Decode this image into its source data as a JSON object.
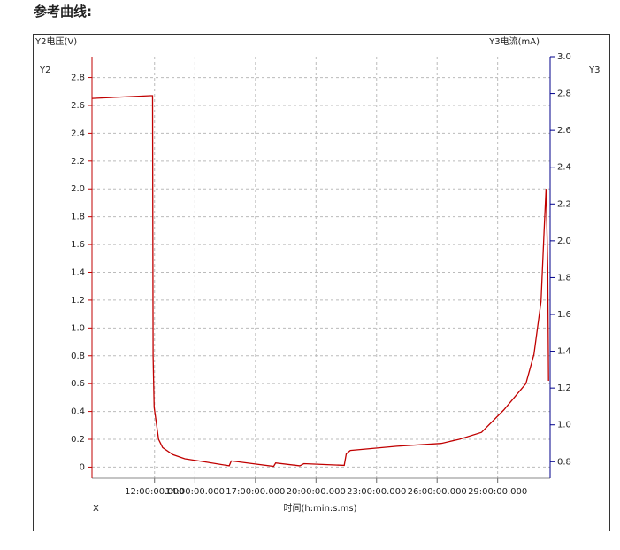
{
  "heading": "参考曲线:",
  "chart_data": {
    "type": "line",
    "y_title": "Y2电压(V)",
    "y2_title": "Y3电流(mA)",
    "y_axis_name": "Y2",
    "y2_axis_name": "Y3",
    "x_axis_name": "X",
    "x_label": "时间(h:min:s.ms)",
    "xlim": [
      8.9,
      31.6
    ],
    "xticks": [
      {
        "value": 12,
        "label": "12:00:00.000"
      },
      {
        "value": 14,
        "label": "14:00:00.000"
      },
      {
        "value": 17,
        "label": "17:00:00.000"
      },
      {
        "value": 20,
        "label": "20:00:00.000"
      },
      {
        "value": 23,
        "label": "23:00:00.000"
      },
      {
        "value": 26,
        "label": "26:00:00.000"
      },
      {
        "value": 29,
        "label": "29:00:00.000"
      }
    ],
    "ylim": [
      -0.08,
      2.95
    ],
    "yticks": [
      0,
      0.2,
      0.4,
      0.6,
      0.8,
      {
        "value": 1,
        "label": "1.0"
      },
      1.2,
      1.4,
      1.6,
      1.8,
      {
        "value": 2,
        "label": "2.0"
      },
      2.2,
      2.4,
      2.6,
      2.8
    ],
    "y2lim": [
      0.71,
      3.0
    ],
    "y2ticks": [
      0.8,
      {
        "value": 1,
        "label": "1.0"
      },
      1.2,
      1.4,
      1.6,
      1.8,
      {
        "value": 2,
        "label": "2.0"
      },
      2.2,
      2.4,
      2.6,
      2.8,
      {
        "value": 3,
        "label": "3.0"
      }
    ],
    "grid": true,
    "y_color": "#c00000",
    "y2_color": "#00008b",
    "x": [
      8.9,
      11.8,
      11.9,
      11.93,
      11.98,
      12.2,
      12.4,
      12.9,
      13.5,
      14.4,
      15.7,
      15.8,
      17.9,
      18.0,
      19.2,
      19.4,
      21.4,
      21.5,
      21.7,
      24.0,
      26.2,
      27.1,
      28.2,
      29.3,
      30.4,
      30.8,
      31.15,
      31.3,
      31.4,
      31.48,
      31.52
    ],
    "series": [
      {
        "color": "#c00000",
        "values": [
          2.65,
          2.67,
          2.67,
          0.8,
          0.43,
          0.2,
          0.14,
          0.09,
          0.06,
          0.04,
          0.01,
          0.045,
          0.006,
          0.03,
          0.01,
          0.025,
          0.013,
          0.095,
          0.12,
          0.15,
          0.17,
          0.2,
          0.25,
          0.41,
          0.6,
          0.81,
          1.19,
          1.7,
          2.0,
          1.44,
          0.62
        ]
      }
    ]
  }
}
